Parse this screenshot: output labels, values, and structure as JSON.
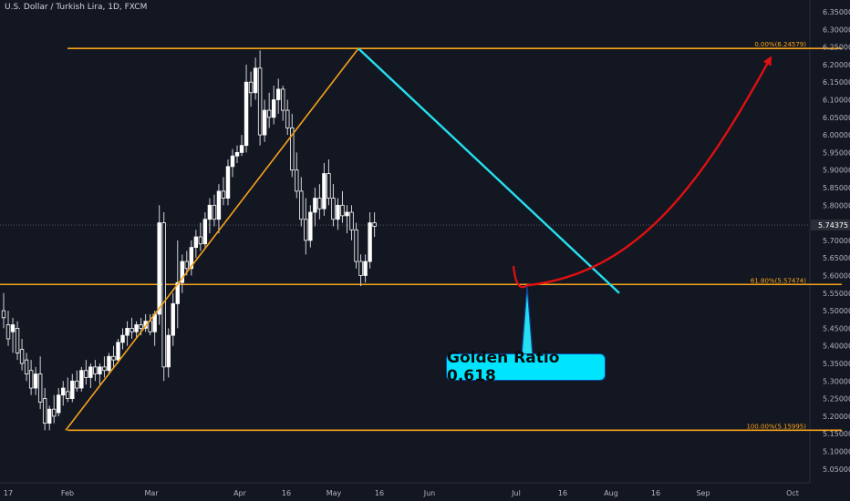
{
  "header": {
    "title": "U.S. Dollar / Turkish Lira, 1D, FXCM"
  },
  "callout": {
    "label": "Golden Ratio 0.618"
  },
  "colors": {
    "background": "#131722",
    "fib": "#f7a21b",
    "trendline": "#26e0f0",
    "projection": "#e01010",
    "candle_up": "#ffffff",
    "candle_down": "#ffffff"
  },
  "chart_data": {
    "type": "candlestick",
    "symbol": "U.S. Dollar / Turkish Lira",
    "interval": "1D",
    "source": "FXCM",
    "y_ticks": [
      "6.35000",
      "6.30000",
      "6.25000",
      "6.20000",
      "6.15000",
      "6.10000",
      "6.05000",
      "6.00000",
      "5.95000",
      "5.90000",
      "5.85000",
      "5.80000",
      "5.75000",
      "5.70000",
      "5.65000",
      "5.60000",
      "5.55000",
      "5.50000",
      "5.45000",
      "5.40000",
      "5.35000",
      "5.30000",
      "5.25000",
      "5.20000",
      "5.15000",
      "5.10000",
      "5.05000"
    ],
    "ylim": [
      5.05,
      6.35
    ],
    "x_ticks": [
      "17",
      "Feb",
      "Mar",
      "Apr",
      "16",
      "May",
      "16",
      "Jun",
      "Jul",
      "16",
      "Aug",
      "16",
      "Sep",
      "Oct"
    ],
    "last_price": "5.74375",
    "fib_levels": [
      {
        "label": "0.00%(6.24579)",
        "value": 6.24579
      },
      {
        "label": "61.80%(5.57474)",
        "value": 5.57474
      },
      {
        "label": "100.00%(5.15995)",
        "value": 5.15995
      }
    ],
    "candles": [
      {
        "o": 5.5,
        "h": 5.55,
        "l": 5.45,
        "c": 5.48
      },
      {
        "o": 5.46,
        "h": 5.5,
        "l": 5.4,
        "c": 5.42
      },
      {
        "o": 5.44,
        "h": 5.48,
        "l": 5.38,
        "c": 5.46
      },
      {
        "o": 5.45,
        "h": 5.47,
        "l": 5.36,
        "c": 5.38
      },
      {
        "o": 5.39,
        "h": 5.42,
        "l": 5.33,
        "c": 5.35
      },
      {
        "o": 5.36,
        "h": 5.38,
        "l": 5.3,
        "c": 5.32
      },
      {
        "o": 5.33,
        "h": 5.36,
        "l": 5.26,
        "c": 5.28
      },
      {
        "o": 5.28,
        "h": 5.34,
        "l": 5.26,
        "c": 5.32
      },
      {
        "o": 5.32,
        "h": 5.37,
        "l": 5.22,
        "c": 5.24
      },
      {
        "o": 5.25,
        "h": 5.28,
        "l": 5.16,
        "c": 5.18
      },
      {
        "o": 5.18,
        "h": 5.23,
        "l": 5.16,
        "c": 5.22
      },
      {
        "o": 5.22,
        "h": 5.26,
        "l": 5.18,
        "c": 5.2
      },
      {
        "o": 5.21,
        "h": 5.28,
        "l": 5.2,
        "c": 5.26
      },
      {
        "o": 5.26,
        "h": 5.3,
        "l": 5.23,
        "c": 5.28
      },
      {
        "o": 5.27,
        "h": 5.31,
        "l": 5.24,
        "c": 5.25
      },
      {
        "o": 5.25,
        "h": 5.32,
        "l": 5.24,
        "c": 5.3
      },
      {
        "o": 5.3,
        "h": 5.33,
        "l": 5.27,
        "c": 5.28
      },
      {
        "o": 5.28,
        "h": 5.34,
        "l": 5.27,
        "c": 5.33
      },
      {
        "o": 5.33,
        "h": 5.36,
        "l": 5.29,
        "c": 5.31
      },
      {
        "o": 5.31,
        "h": 5.35,
        "l": 5.28,
        "c": 5.34
      },
      {
        "o": 5.34,
        "h": 5.36,
        "l": 5.3,
        "c": 5.32
      },
      {
        "o": 5.32,
        "h": 5.35,
        "l": 5.29,
        "c": 5.34
      },
      {
        "o": 5.34,
        "h": 5.37,
        "l": 5.31,
        "c": 5.33
      },
      {
        "o": 5.33,
        "h": 5.38,
        "l": 5.32,
        "c": 5.37
      },
      {
        "o": 5.37,
        "h": 5.4,
        "l": 5.34,
        "c": 5.36
      },
      {
        "o": 5.36,
        "h": 5.42,
        "l": 5.35,
        "c": 5.41
      },
      {
        "o": 5.41,
        "h": 5.45,
        "l": 5.39,
        "c": 5.43
      },
      {
        "o": 5.43,
        "h": 5.47,
        "l": 5.4,
        "c": 5.45
      },
      {
        "o": 5.45,
        "h": 5.48,
        "l": 5.42,
        "c": 5.44
      },
      {
        "o": 5.44,
        "h": 5.47,
        "l": 5.42,
        "c": 5.46
      },
      {
        "o": 5.46,
        "h": 5.48,
        "l": 5.43,
        "c": 5.45
      },
      {
        "o": 5.45,
        "h": 5.49,
        "l": 5.44,
        "c": 5.47
      },
      {
        "o": 5.47,
        "h": 5.49,
        "l": 5.43,
        "c": 5.44
      },
      {
        "o": 5.44,
        "h": 5.5,
        "l": 5.4,
        "c": 5.49
      },
      {
        "o": 5.49,
        "h": 5.8,
        "l": 5.46,
        "c": 5.75
      },
      {
        "o": 5.75,
        "h": 5.78,
        "l": 5.3,
        "c": 5.34
      },
      {
        "o": 5.34,
        "h": 5.45,
        "l": 5.31,
        "c": 5.43
      },
      {
        "o": 5.43,
        "h": 5.55,
        "l": 5.4,
        "c": 5.52
      },
      {
        "o": 5.52,
        "h": 5.7,
        "l": 5.45,
        "c": 5.58
      },
      {
        "o": 5.58,
        "h": 5.66,
        "l": 5.55,
        "c": 5.64
      },
      {
        "o": 5.64,
        "h": 5.67,
        "l": 5.6,
        "c": 5.62
      },
      {
        "o": 5.62,
        "h": 5.7,
        "l": 5.6,
        "c": 5.68
      },
      {
        "o": 5.68,
        "h": 5.73,
        "l": 5.65,
        "c": 5.71
      },
      {
        "o": 5.71,
        "h": 5.75,
        "l": 5.67,
        "c": 5.69
      },
      {
        "o": 5.69,
        "h": 5.78,
        "l": 5.68,
        "c": 5.76
      },
      {
        "o": 5.76,
        "h": 5.82,
        "l": 5.72,
        "c": 5.8
      },
      {
        "o": 5.8,
        "h": 5.83,
        "l": 5.74,
        "c": 5.76
      },
      {
        "o": 5.76,
        "h": 5.86,
        "l": 5.72,
        "c": 5.84
      },
      {
        "o": 5.84,
        "h": 5.88,
        "l": 5.8,
        "c": 5.82
      },
      {
        "o": 5.82,
        "h": 5.93,
        "l": 5.8,
        "c": 5.91
      },
      {
        "o": 5.91,
        "h": 5.96,
        "l": 5.88,
        "c": 5.94
      },
      {
        "o": 5.94,
        "h": 5.97,
        "l": 5.92,
        "c": 5.95
      },
      {
        "o": 5.95,
        "h": 6.0,
        "l": 5.94,
        "c": 5.97
      },
      {
        "o": 5.97,
        "h": 6.2,
        "l": 5.95,
        "c": 6.15
      },
      {
        "o": 6.15,
        "h": 6.18,
        "l": 6.08,
        "c": 6.12
      },
      {
        "o": 6.12,
        "h": 6.22,
        "l": 6.1,
        "c": 6.19
      },
      {
        "o": 6.19,
        "h": 6.24,
        "l": 5.97,
        "c": 6.0
      },
      {
        "o": 6.0,
        "h": 6.1,
        "l": 5.98,
        "c": 6.07
      },
      {
        "o": 6.07,
        "h": 6.12,
        "l": 6.02,
        "c": 6.05
      },
      {
        "o": 6.05,
        "h": 6.14,
        "l": 6.03,
        "c": 6.1
      },
      {
        "o": 6.1,
        "h": 6.16,
        "l": 6.06,
        "c": 6.13
      },
      {
        "o": 6.13,
        "h": 6.14,
        "l": 6.04,
        "c": 6.07
      },
      {
        "o": 6.07,
        "h": 6.1,
        "l": 6.0,
        "c": 6.02
      },
      {
        "o": 6.02,
        "h": 6.06,
        "l": 5.88,
        "c": 5.9
      },
      {
        "o": 5.9,
        "h": 5.95,
        "l": 5.82,
        "c": 5.84
      },
      {
        "o": 5.84,
        "h": 5.88,
        "l": 5.74,
        "c": 5.76
      },
      {
        "o": 5.76,
        "h": 5.82,
        "l": 5.66,
        "c": 5.7
      },
      {
        "o": 5.7,
        "h": 5.8,
        "l": 5.68,
        "c": 5.78
      },
      {
        "o": 5.78,
        "h": 5.85,
        "l": 5.74,
        "c": 5.82
      },
      {
        "o": 5.82,
        "h": 5.86,
        "l": 5.76,
        "c": 5.79
      },
      {
        "o": 5.79,
        "h": 5.92,
        "l": 5.77,
        "c": 5.89
      },
      {
        "o": 5.89,
        "h": 5.93,
        "l": 5.8,
        "c": 5.82
      },
      {
        "o": 5.82,
        "h": 5.86,
        "l": 5.74,
        "c": 5.76
      },
      {
        "o": 5.76,
        "h": 5.82,
        "l": 5.73,
        "c": 5.8
      },
      {
        "o": 5.8,
        "h": 5.84,
        "l": 5.75,
        "c": 5.77
      },
      {
        "o": 5.77,
        "h": 5.8,
        "l": 5.72,
        "c": 5.78
      },
      {
        "o": 5.78,
        "h": 5.8,
        "l": 5.7,
        "c": 5.73
      },
      {
        "o": 5.73,
        "h": 5.75,
        "l": 5.62,
        "c": 5.64
      },
      {
        "o": 5.64,
        "h": 5.66,
        "l": 5.57,
        "c": 5.6
      },
      {
        "o": 5.6,
        "h": 5.66,
        "l": 5.58,
        "c": 5.64
      },
      {
        "o": 5.64,
        "h": 5.78,
        "l": 5.62,
        "c": 5.75
      },
      {
        "o": 5.75,
        "h": 5.78,
        "l": 5.71,
        "c": 5.74
      }
    ],
    "annotations": {
      "fib_anchor_low": 5.15995,
      "fib_anchor_high": 6.24579,
      "trendline_start": 6.24579,
      "trendline_end": 5.55,
      "projection_target": 6.22,
      "callout_level": 5.57474
    }
  }
}
